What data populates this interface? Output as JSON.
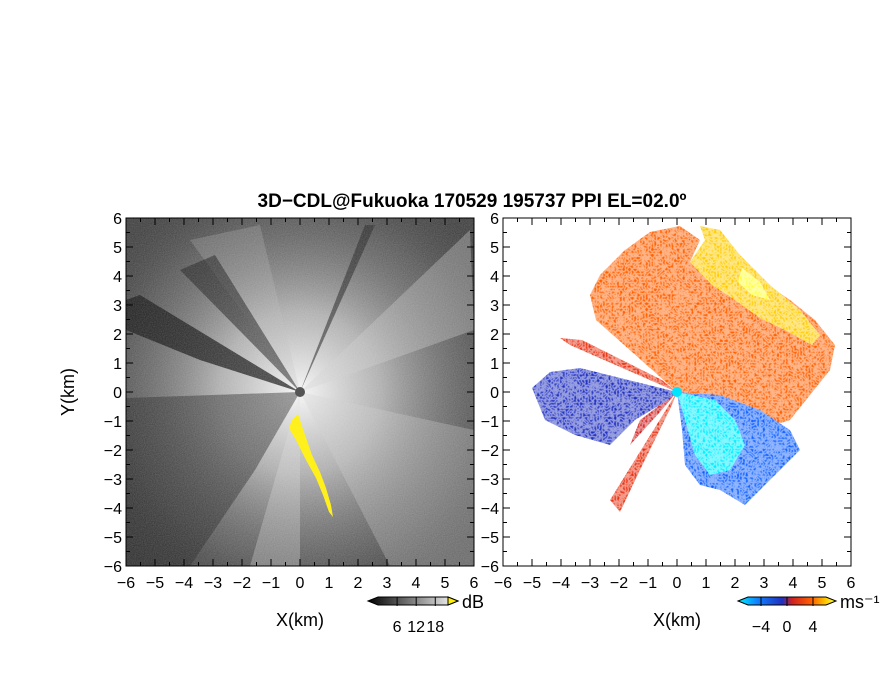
{
  "chart_data": {
    "title": "3D−CDL@Fukuoka 170529 195737 PPI EL=02.0º",
    "panels": [
      {
        "id": "reflectivity",
        "type": "heatmap",
        "xlabel": "X(km)",
        "ylabel": "Y(km)",
        "xlim": [
          -6,
          6
        ],
        "ylim": [
          -6,
          6
        ],
        "xticks": [
          "−6",
          "−5",
          "−4",
          "−3",
          "−2",
          "−1",
          "0",
          "1",
          "2",
          "3",
          "4",
          "5",
          "6"
        ],
        "yticks": [
          "−6",
          "−5",
          "−4",
          "−3",
          "−2",
          "−1",
          "0",
          "1",
          "2",
          "3",
          "4",
          "5",
          "6"
        ],
        "colorbar": {
          "unit": "dB",
          "tick_labels": [
            "6",
            "12",
            "18"
          ],
          "tick_values": [
            6,
            12,
            18
          ],
          "range": [
            0,
            22
          ],
          "colors": [
            "#000000",
            "#ffffff"
          ],
          "over_color": "#ffee00"
        },
        "colors": {
          "background": "#3a3a3a",
          "highlight": "#ffee00"
        }
      },
      {
        "id": "velocity",
        "type": "heatmap",
        "xlabel": "X(km)",
        "xlim": [
          -6,
          6
        ],
        "ylim": [
          -6,
          6
        ],
        "xticks": [
          "−6",
          "−5",
          "−4",
          "−3",
          "−2",
          "−1",
          "0",
          "1",
          "2",
          "3",
          "4",
          "5",
          "6"
        ],
        "yticks": [
          "−6",
          "−5",
          "−4",
          "−3",
          "−2",
          "−1",
          "0",
          "1",
          "2",
          "3",
          "4",
          "5",
          "6"
        ],
        "colorbar": {
          "unit": "ms⁻¹",
          "tick_labels": [
            "−4",
            "0",
            "4"
          ],
          "tick_values": [
            -4,
            0,
            4
          ],
          "range": [
            -6,
            6
          ],
          "colors": [
            "#00eeff",
            "#1060ff",
            "#2030c0",
            "#d02020",
            "#ff6000",
            "#ffcc00",
            "#ffff40"
          ]
        }
      }
    ]
  }
}
